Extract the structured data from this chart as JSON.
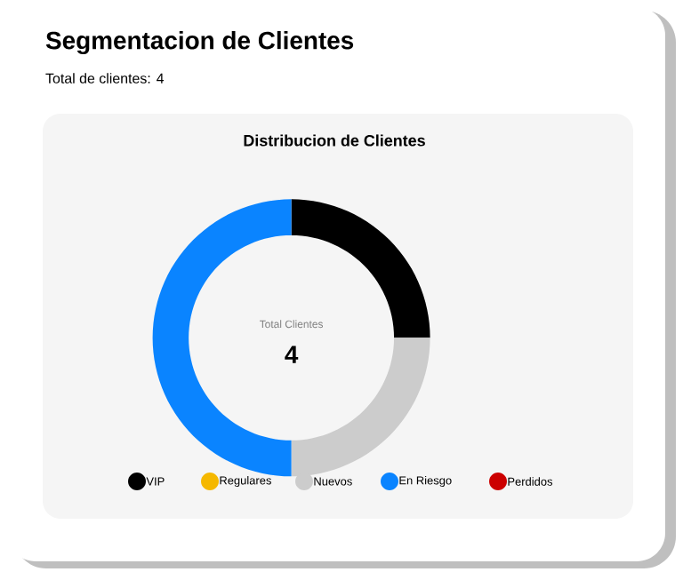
{
  "chart_data": {
    "type": "donut",
    "title": "Distribucion de Clientes",
    "subtitle": "Segmentacion de Clientes",
    "annotations": [
      "Total de clientes: 4",
      "Total Clientes",
      "4"
    ],
    "categories": [
      "VIP",
      "Regulares",
      "Nuevos",
      "En Riesgo",
      "Perdidos"
    ],
    "values": [
      25,
      0,
      25,
      50,
      0
    ],
    "colors": [
      "#000000",
      "#f5b800",
      "#cccccc",
      "#0a84ff",
      "#cc0000"
    ],
    "legend": "bottom"
  }
}
